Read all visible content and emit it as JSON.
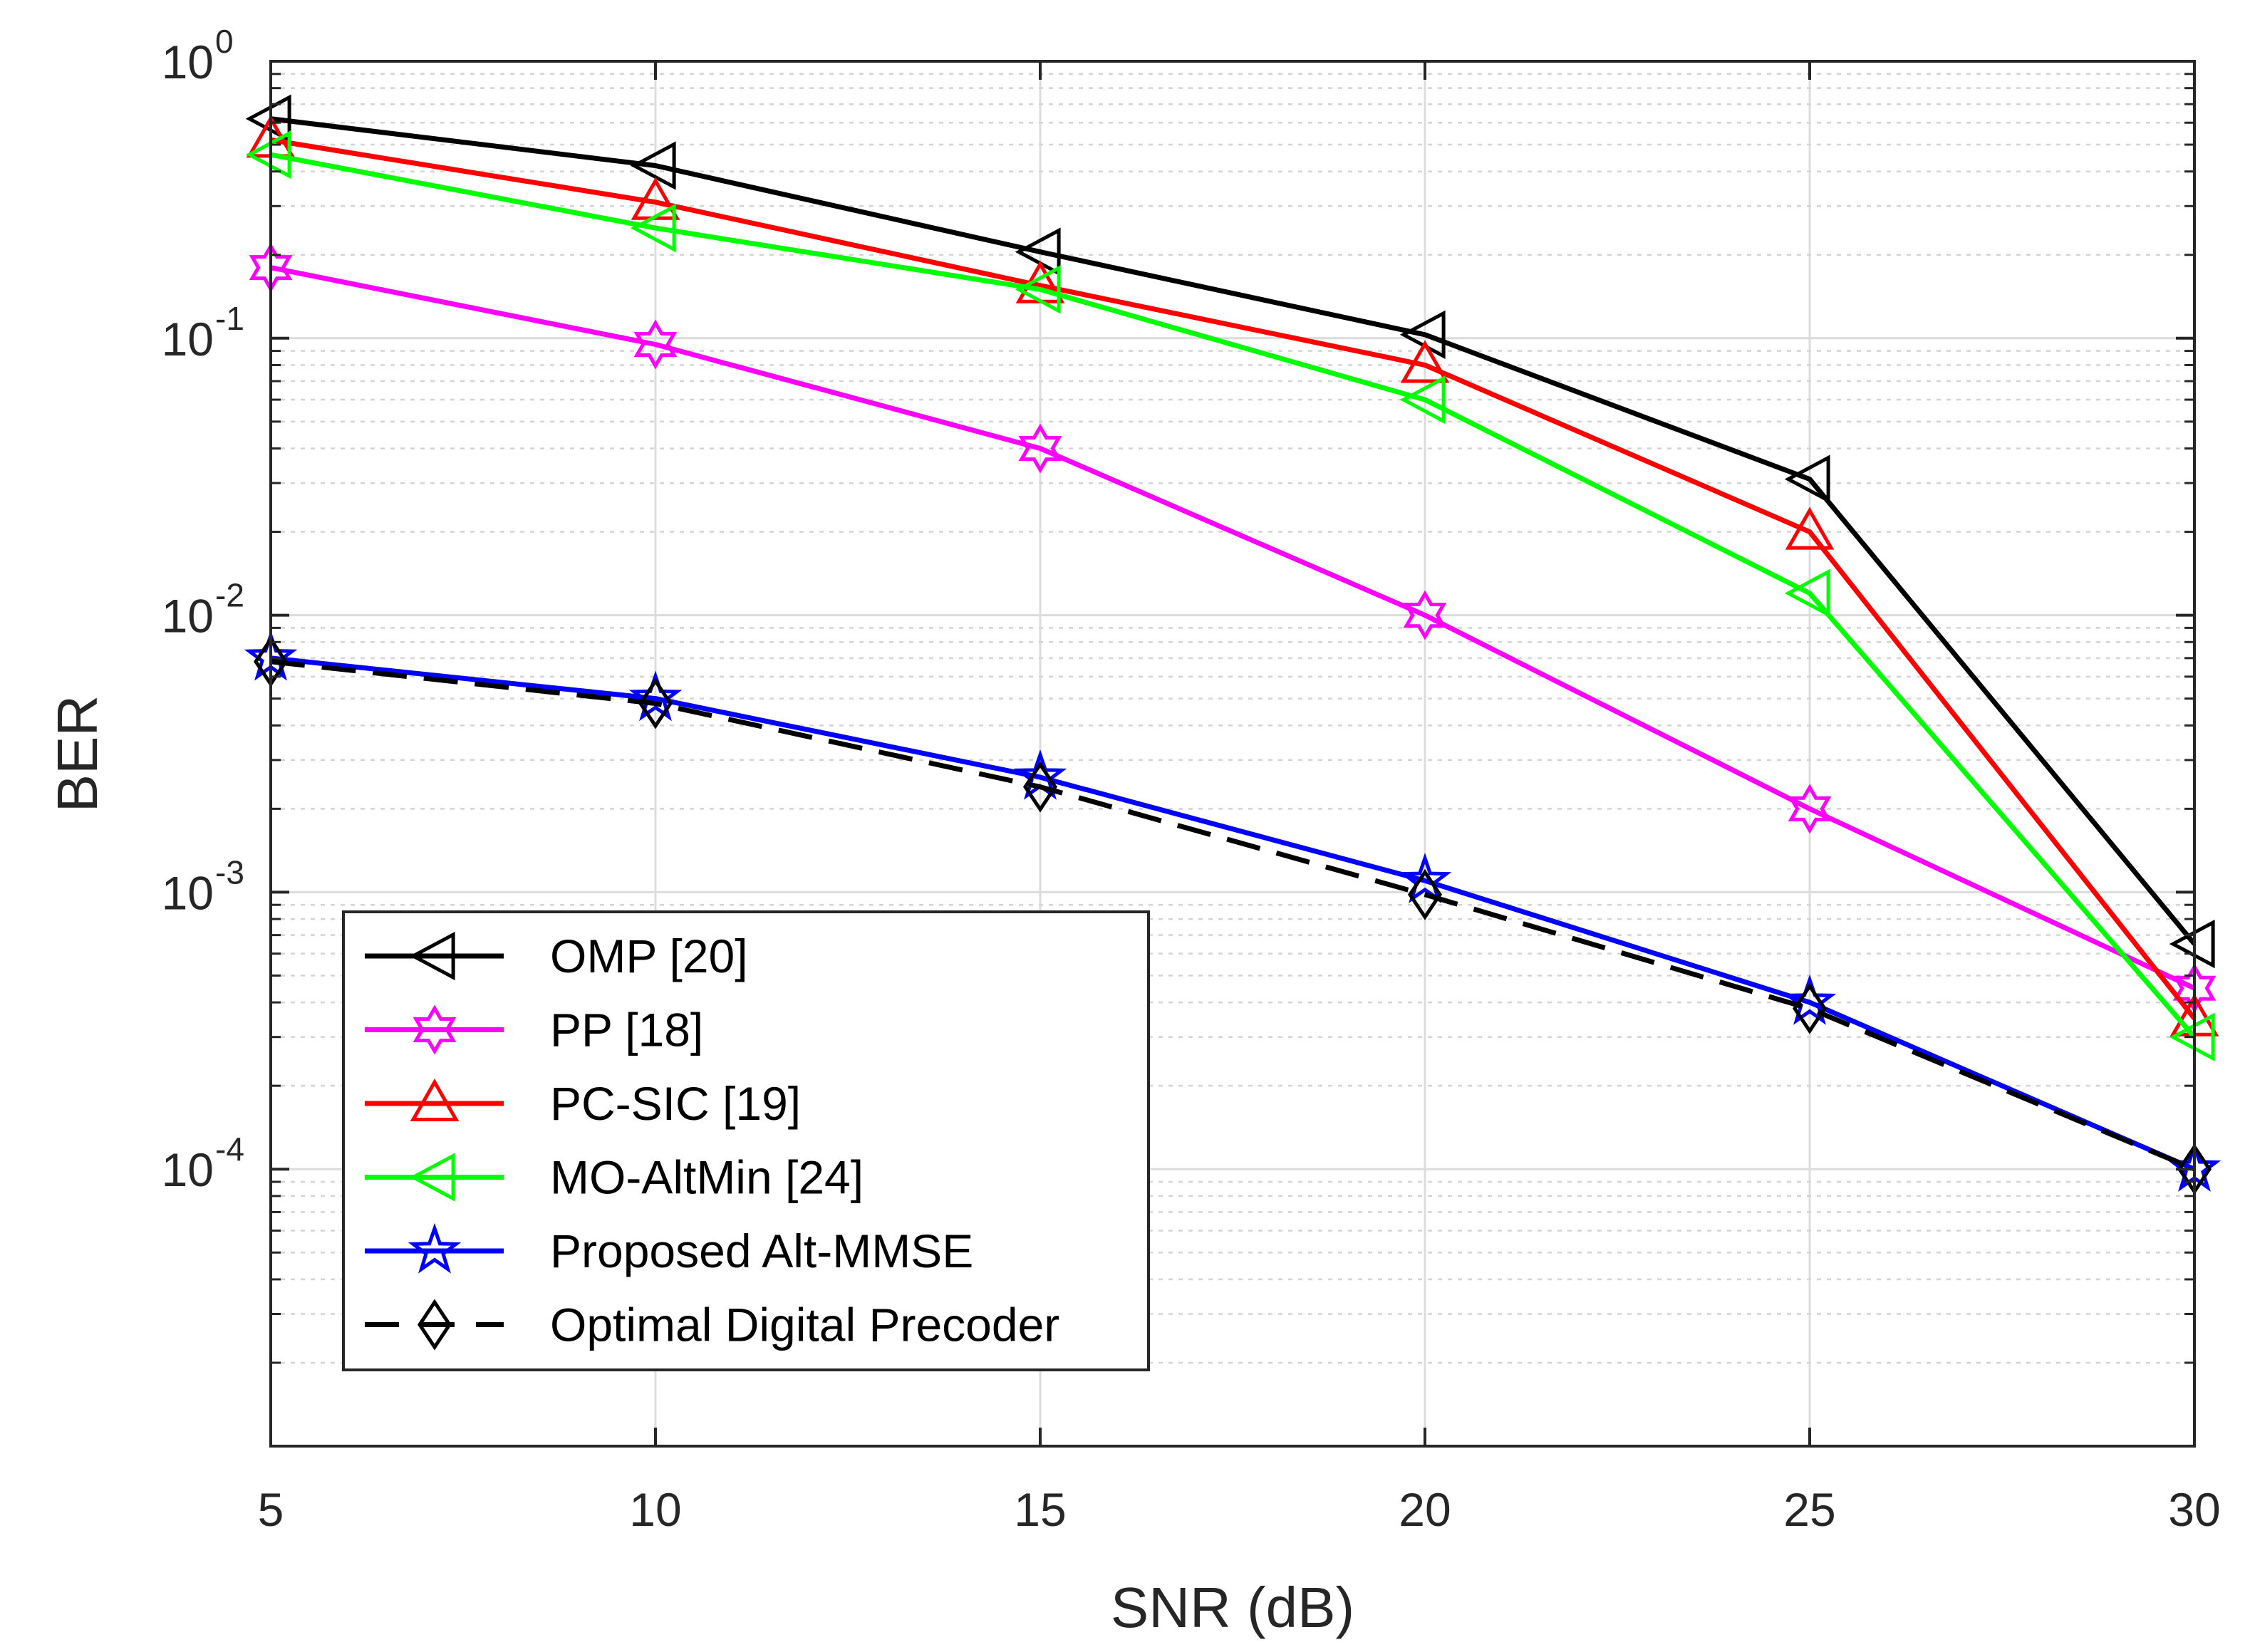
{
  "chart_data": {
    "type": "line",
    "title": "",
    "xlabel": "SNR (dB)",
    "ylabel": "BER",
    "yscale": "log",
    "xlim": [
      5,
      30
    ],
    "ylim": [
      1e-05,
      1
    ],
    "grid": true,
    "legend_position": "bottom-left",
    "x": [
      5,
      10,
      15,
      20,
      25,
      30
    ],
    "x_ticks": [
      "5",
      "10",
      "15",
      "20",
      "25",
      "30"
    ],
    "y_ticks": [
      {
        "value": 1,
        "base": "10",
        "exp": "0"
      },
      {
        "value": 0.1,
        "base": "10",
        "exp": "-1"
      },
      {
        "value": 0.01,
        "base": "10",
        "exp": "-2"
      },
      {
        "value": 0.001,
        "base": "10",
        "exp": "-3"
      },
      {
        "value": 0.0001,
        "base": "10",
        "exp": "-4"
      }
    ],
    "series": [
      {
        "name": "OMP [20]",
        "color": "#000000",
        "marker": "triangle-left",
        "dash": "solid",
        "values": [
          0.62,
          0.42,
          0.205,
          0.103,
          0.031,
          0.00065
        ]
      },
      {
        "name": "PP [18]",
        "color": "#ff00ff",
        "marker": "hexagram",
        "dash": "solid",
        "values": [
          0.18,
          0.095,
          0.04,
          0.01,
          0.002,
          0.00045
        ]
      },
      {
        "name": "PC-SIC [19]",
        "color": "#ff0000",
        "marker": "triangle-up",
        "dash": "solid",
        "values": [
          0.52,
          0.31,
          0.155,
          0.08,
          0.02,
          0.00035
        ]
      },
      {
        "name": "MO-AltMin [24]",
        "color": "#00ff00",
        "marker": "triangle-left",
        "dash": "solid",
        "values": [
          0.46,
          0.25,
          0.15,
          0.06,
          0.012,
          0.0003
        ]
      },
      {
        "name": "Proposed Alt-MMSE",
        "color": "#0000ff",
        "marker": "pentagram",
        "dash": "solid",
        "values": [
          0.007,
          0.005,
          0.0026,
          0.0011,
          0.0004,
          0.0001
        ]
      },
      {
        "name": "Optimal Digital Precoder",
        "color": "#000000",
        "marker": "diamond",
        "dash": "dashed",
        "values": [
          0.0068,
          0.0048,
          0.0024,
          0.00098,
          0.00038,
          0.0001
        ]
      }
    ]
  }
}
